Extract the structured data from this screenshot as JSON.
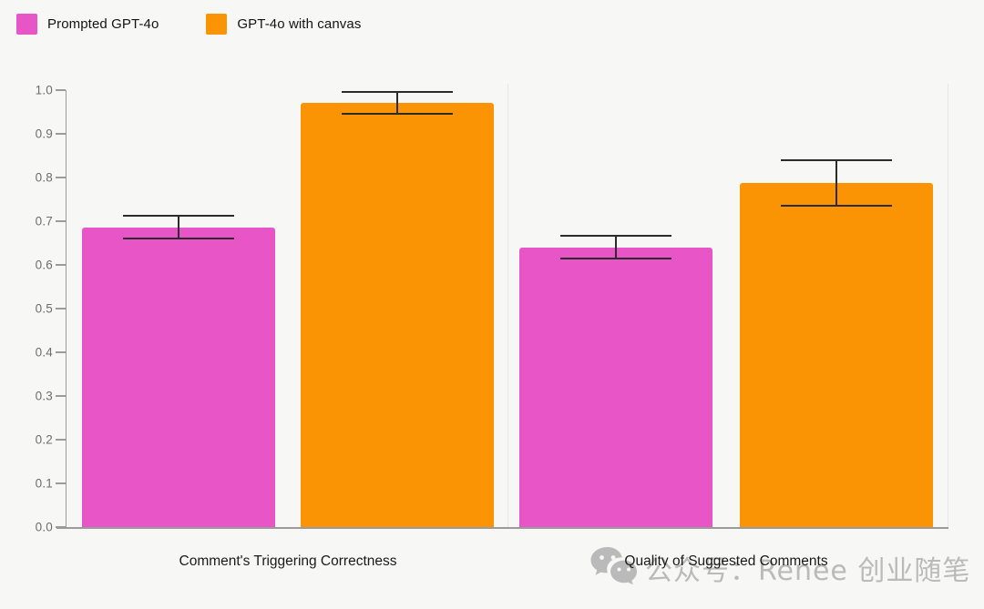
{
  "page": {
    "background": "#F7F7F6"
  },
  "legend": {
    "items": [
      {
        "label": "Prompted GPT-4o",
        "color": "#E855C7"
      },
      {
        "label": "GPT-4o with canvas",
        "color": "#FA9405"
      }
    ]
  },
  "chart_data": {
    "type": "bar",
    "title": "",
    "categories": [
      "Comment's Triggering Correctness",
      "Quality of Suggested Comments"
    ],
    "series": [
      {
        "name": "Prompted GPT-4o",
        "color": "#E855C7",
        "values": [
          0.685,
          0.64
        ],
        "error_low": [
          0.66,
          0.615
        ],
        "error_high": [
          0.713,
          0.667
        ]
      },
      {
        "name": "GPT-4o with canvas",
        "color": "#FA9405",
        "values": [
          0.97,
          0.787
        ],
        "error_low": [
          0.945,
          0.735
        ],
        "error_high": [
          0.995,
          0.84
        ]
      }
    ],
    "xlabel": "",
    "ylabel": "",
    "ylim": [
      0.0,
      1.0
    ],
    "yticks": [
      "0.0",
      "0.1",
      "0.2",
      "0.3",
      "0.4",
      "0.5",
      "0.6",
      "0.7",
      "0.8",
      "0.9",
      "1.0"
    ],
    "grid": false,
    "legend_position": "top-left",
    "axis_color": "#9b9b9b",
    "error_bar_color": "#2b2b2b",
    "separator_color": "#e7e7e5"
  },
  "watermark": {
    "icon": "wechat-icon",
    "text": "公众号：Renee 创业随笔",
    "color": "#a6a6a6"
  }
}
